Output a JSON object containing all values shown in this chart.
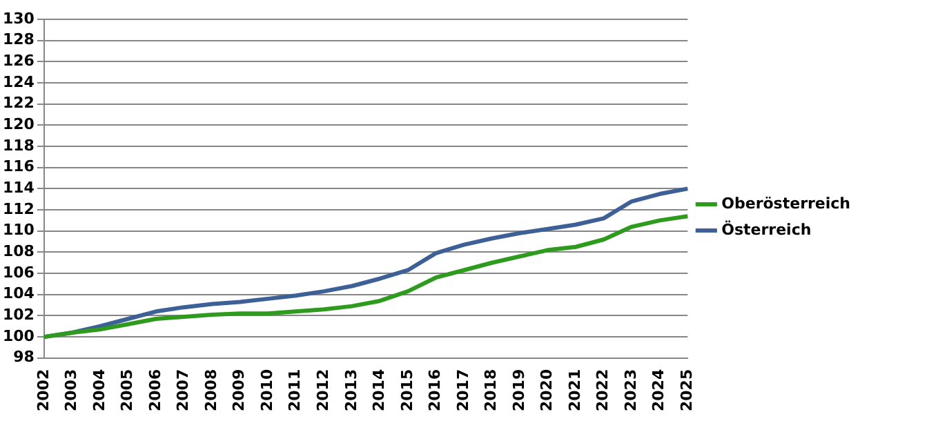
{
  "chart_data": {
    "type": "line",
    "categories": [
      "2002",
      "2003",
      "2004",
      "2005",
      "2006",
      "2007",
      "2008",
      "2009",
      "2010",
      "2011",
      "2012",
      "2013",
      "2014",
      "2015",
      "2016",
      "2017",
      "2018",
      "2019",
      "2020",
      "2021",
      "2022",
      "2023",
      "2024",
      "2025"
    ],
    "series": [
      {
        "name": "Oberösterreich",
        "color": "#2e9a1e",
        "values": [
          100,
          100.4,
          100.7,
          101.2,
          101.7,
          101.9,
          102.1,
          102.2,
          102.2,
          102.4,
          102.6,
          102.9,
          103.4,
          104.3,
          105.6,
          106.3,
          107.0,
          107.6,
          108.2,
          108.5,
          109.2,
          110.4,
          111.0,
          111.4
        ]
      },
      {
        "name": "Österreich",
        "color": "#3d6196",
        "values": [
          100,
          100.4,
          101.0,
          101.7,
          102.4,
          102.8,
          103.1,
          103.3,
          103.6,
          103.9,
          104.3,
          104.8,
          105.5,
          106.3,
          107.9,
          108.7,
          109.3,
          109.8,
          110.2,
          110.6,
          111.2,
          112.8,
          113.5,
          114.0
        ]
      }
    ],
    "ylim": [
      98,
      130
    ],
    "yticks": [
      98,
      100,
      102,
      104,
      106,
      108,
      110,
      112,
      114,
      116,
      118,
      120,
      122,
      124,
      126,
      128,
      130
    ],
    "grid": "y",
    "legend": "right",
    "marker": "none",
    "line_style": "solid"
  }
}
